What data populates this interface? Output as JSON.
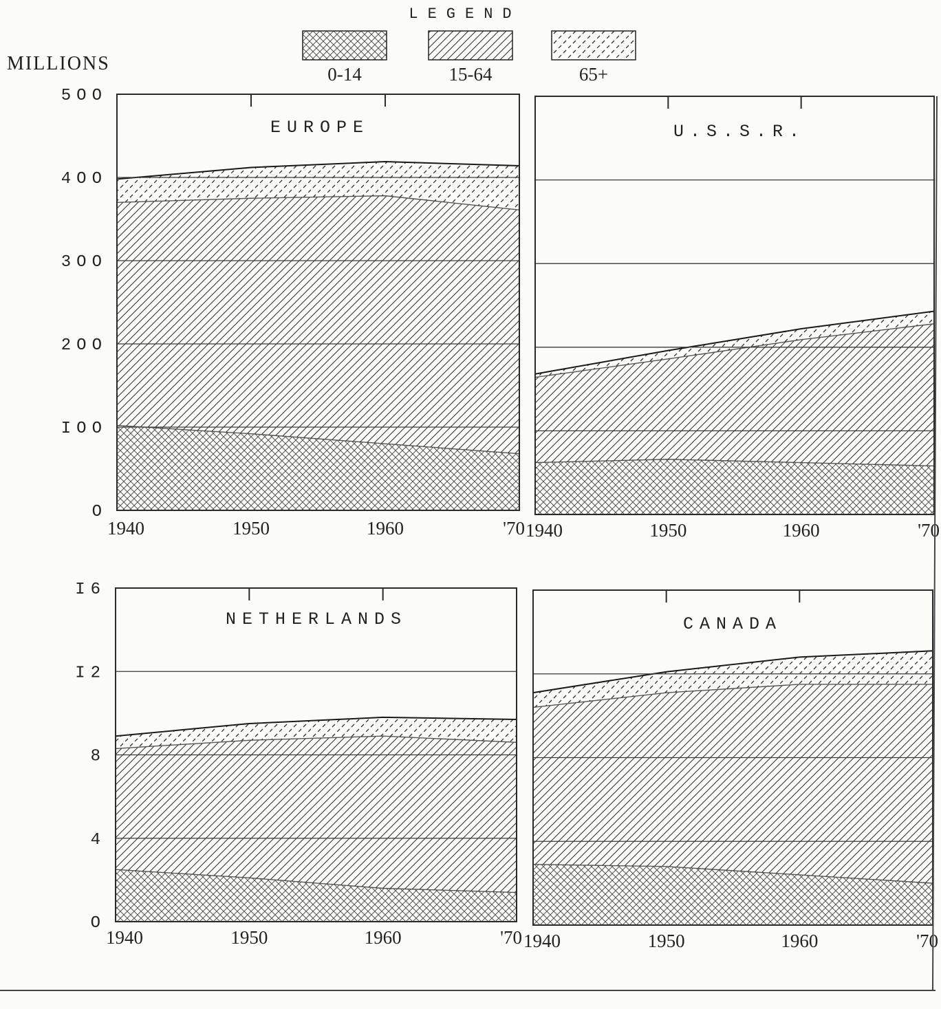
{
  "legend": {
    "title": "LEGEND",
    "items": [
      {
        "label": "0-14",
        "pattern": "crosshatch"
      },
      {
        "label": "15-64",
        "pattern": "hatch"
      },
      {
        "label": "65+",
        "pattern": "dashed-hatch"
      }
    ]
  },
  "y_unit_label": "MILLIONS",
  "colors": {
    "ink": "#1f1f1f",
    "paper": "#fbfbf8",
    "grid": "#3a3a3a"
  },
  "chart_data": [
    {
      "type": "area",
      "stacked": true,
      "title": "EUROPE",
      "x": [
        1940,
        1950,
        1960,
        1970
      ],
      "x_tick_labels": [
        "1940",
        "1950",
        "1960",
        "'70"
      ],
      "ylim": [
        0,
        500
      ],
      "y_ticks": [
        0,
        100,
        200,
        300,
        400,
        500
      ],
      "y_tick_labels": [
        "O",
        "IOO",
        "2OO",
        "3OO",
        "4OO",
        "5OO"
      ],
      "grid": true,
      "series": [
        {
          "name": "0-14",
          "values": [
            102,
            92,
            80,
            68
          ]
        },
        {
          "name": "15-64",
          "values": [
            268,
            283,
            298,
            293
          ]
        },
        {
          "name": "65+",
          "values": [
            28,
            37,
            41,
            53
          ]
        }
      ]
    },
    {
      "type": "area",
      "stacked": true,
      "title": "U.S.S.R.",
      "x": [
        1940,
        1950,
        1960,
        1970
      ],
      "x_tick_labels": [
        "1940",
        "1950",
        "1960",
        "'70"
      ],
      "ylim": [
        0,
        500
      ],
      "y_ticks": [
        0,
        100,
        200,
        300,
        400,
        500
      ],
      "grid": true,
      "series": [
        {
          "name": "0-14",
          "values": [
            62,
            66,
            62,
            58
          ]
        },
        {
          "name": "15-64",
          "values": [
            102,
            120,
            147,
            170
          ]
        },
        {
          "name": "65+",
          "values": [
            4,
            10,
            13,
            15
          ]
        }
      ]
    },
    {
      "type": "area",
      "stacked": true,
      "title": "NETHERLANDS",
      "x": [
        1940,
        1950,
        1960,
        1970
      ],
      "x_tick_labels": [
        "1940",
        "1950",
        "1960",
        "'70"
      ],
      "ylim": [
        0,
        16
      ],
      "y_ticks": [
        0,
        4,
        8,
        12,
        16
      ],
      "y_tick_labels": [
        "O",
        "4",
        "8",
        "I2",
        "I6"
      ],
      "grid": true,
      "series": [
        {
          "name": "0-14",
          "values": [
            2.5,
            2.1,
            1.6,
            1.4
          ]
        },
        {
          "name": "15-64",
          "values": [
            5.8,
            6.6,
            7.3,
            7.2
          ]
        },
        {
          "name": "65+",
          "values": [
            0.6,
            0.8,
            0.9,
            1.1
          ]
        }
      ]
    },
    {
      "type": "area",
      "stacked": true,
      "title": "CANADA",
      "x": [
        1940,
        1950,
        1960,
        1970
      ],
      "x_tick_labels": [
        "1940",
        "1950",
        "1960",
        "'70"
      ],
      "ylim": [
        0,
        16
      ],
      "y_ticks": [
        0,
        4,
        8,
        12,
        16
      ],
      "grid": true,
      "series": [
        {
          "name": "0-14",
          "values": [
            2.9,
            2.8,
            2.4,
            2.0
          ]
        },
        {
          "name": "15-64",
          "values": [
            7.5,
            8.3,
            9.1,
            9.5
          ]
        },
        {
          "name": "65+",
          "values": [
            0.7,
            1.0,
            1.3,
            1.6
          ]
        }
      ]
    }
  ]
}
